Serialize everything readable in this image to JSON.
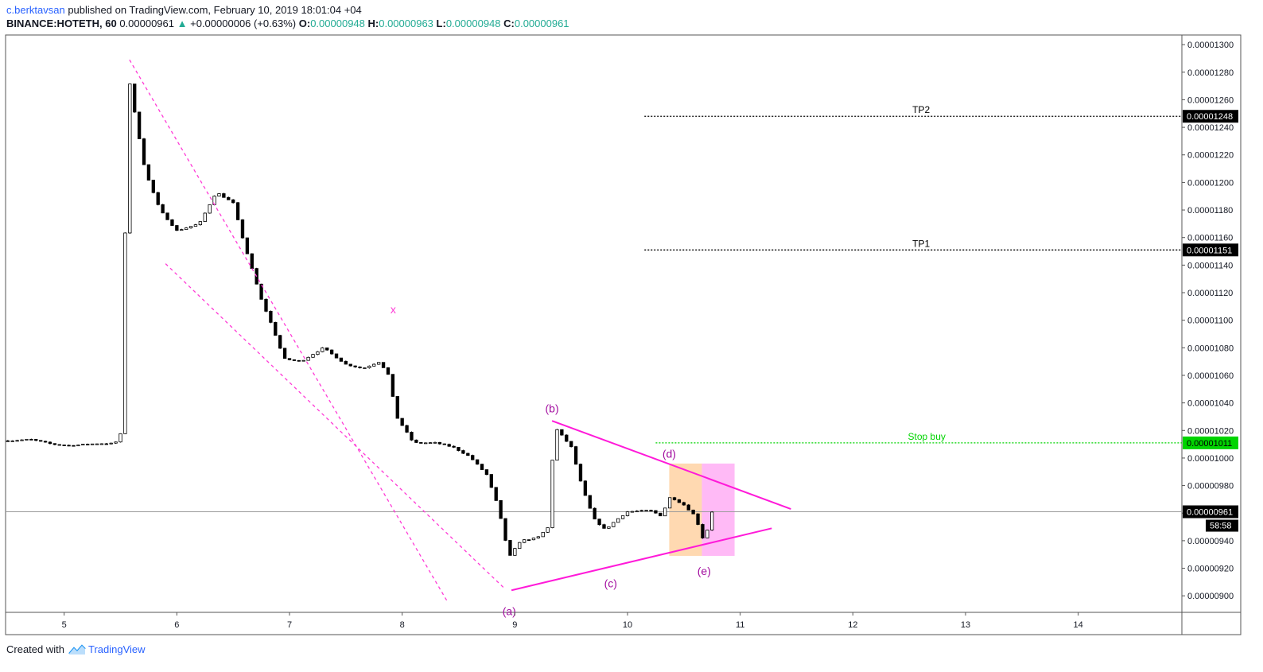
{
  "header": {
    "author": "c.berktavsan",
    "published": "published on TradingView.com, February 10, 2019 18:01:04 +04",
    "symbol": "BINANCE:HOTETH, 60",
    "last": "0.00000961",
    "change_arrow": "▲",
    "change": "+0.00000006 (+0.63%)",
    "o_label": "O:",
    "o_value": "0.00000948",
    "h_label": "H:",
    "h_value": "0.00000963",
    "l_label": "L:",
    "l_value": "0.00000948",
    "c_label": "C:",
    "c_value": "0.00000961"
  },
  "footer": {
    "created_with": "Created with",
    "brand": "TradingView"
  },
  "colors": {
    "bull": "#ffffff",
    "bear": "#000000",
    "wick": "#000000",
    "channel": "#ff3ad6",
    "triangle": "#ff1ad9",
    "wave_label": "#a30fa0",
    "stop": "#00d400",
    "target": "#000000",
    "last_price_line": "#9a9a9a",
    "risk_zone": "#ffd5a8",
    "reward_zone": "#ffb3f5"
  },
  "chart_data": {
    "type": "candlestick",
    "price_range": [
      8.88e-06,
      1.307e-05
    ],
    "y_ticks": [
      "0.00000900",
      "0.00000920",
      "0.00000940",
      "0.00000960",
      "0.00000980",
      "0.00001000",
      "0.00001020",
      "0.00001040",
      "0.00001060",
      "0.00001080",
      "0.00001100",
      "0.00001120",
      "0.00001140",
      "0.00001160",
      "0.00001180",
      "0.00001200",
      "0.00001220",
      "0.00001240",
      "0.00001260",
      "0.00001280",
      "0.00001300"
    ],
    "x_ticks": [
      "5",
      "6",
      "7",
      "8",
      "9",
      "10",
      "11",
      "12",
      "13",
      "14"
    ],
    "x_range_days": [
      4.48,
      14.92
    ],
    "price_anchors": [
      [
        4.5,
        1.0125e-05
      ],
      [
        4.7,
        1.0135e-05
      ],
      [
        4.9,
        1.01e-05
      ],
      [
        5.05,
        1.009e-05
      ],
      [
        5.3,
        1.0105e-05
      ],
      [
        5.45,
        1.0105e-05
      ],
      [
        5.52,
        1.02e-05
      ],
      [
        5.56,
        1.285e-05
      ],
      [
        5.6,
        1.262e-05
      ],
      [
        5.72,
        1.208e-05
      ],
      [
        5.85,
        1.18e-05
      ],
      [
        6.0,
        1.165e-05
      ],
      [
        6.2,
        1.17e-05
      ],
      [
        6.35,
        1.193e-05
      ],
      [
        6.5,
        1.185e-05
      ],
      [
        6.6,
        1.155e-05
      ],
      [
        6.75,
        1.115e-05
      ],
      [
        6.85,
        1.095e-05
      ],
      [
        6.95,
        1.072e-05
      ],
      [
        7.1,
        1.07e-05
      ],
      [
        7.3,
        1.08e-05
      ],
      [
        7.5,
        1.068e-05
      ],
      [
        7.65,
        1.065e-05
      ],
      [
        7.8,
        1.07e-05
      ],
      [
        7.88,
        1.06e-05
      ],
      [
        7.95,
        1.03e-05
      ],
      [
        8.1,
        1.011e-05
      ],
      [
        8.3,
        1.011e-05
      ],
      [
        8.45,
        1.008e-05
      ],
      [
        8.6,
        1.001e-05
      ],
      [
        8.75,
        9.88e-06
      ],
      [
        8.85,
        9.65e-06
      ],
      [
        8.95,
        9.28e-06
      ],
      [
        9.05,
        9.4e-06
      ],
      [
        9.2,
        9.42e-06
      ],
      [
        9.3,
        9.5e-06
      ],
      [
        9.35,
        1.023e-05
      ],
      [
        9.5,
        1.008e-05
      ],
      [
        9.6,
        9.78e-06
      ],
      [
        9.7,
        9.56e-06
      ],
      [
        9.8,
        9.48e-06
      ],
      [
        9.9,
        9.55e-06
      ],
      [
        10.0,
        9.61e-06
      ],
      [
        10.2,
        9.62e-06
      ],
      [
        10.3,
        9.58e-06
      ],
      [
        10.38,
        9.72e-06
      ],
      [
        10.5,
        9.66e-06
      ],
      [
        10.6,
        9.58e-06
      ],
      [
        10.68,
        9.39e-06
      ],
      [
        10.75,
        9.61e-06
      ]
    ],
    "last_price": 9.61e-06,
    "countdown": "58:58",
    "levels": [
      {
        "label": "TP2",
        "price": 1.248e-05,
        "price_label": "0.00001248",
        "kind": "target",
        "from_day": 10.15
      },
      {
        "label": "TP1",
        "price": 1.151e-05,
        "price_label": "0.00001151",
        "kind": "target",
        "from_day": 10.15
      },
      {
        "label": "Stop buy",
        "price": 1.011e-05,
        "price_label": "0.00001011",
        "kind": "stop",
        "from_day": 10.25
      }
    ],
    "last_price_label": "0.00000961",
    "wave_labels": [
      {
        "text": "x",
        "day": 7.92,
        "price": 1.108e-05
      },
      {
        "text": "(a)",
        "day": 8.95,
        "price": 8.89e-06
      },
      {
        "text": "(b)",
        "day": 9.33,
        "price": 1.036e-05
      },
      {
        "text": "(c)",
        "day": 9.85,
        "price": 9.09e-06
      },
      {
        "text": "(d)",
        "day": 10.37,
        "price": 1.003e-05
      },
      {
        "text": "(e)",
        "day": 10.68,
        "price": 9.18e-06
      }
    ],
    "channel_lines": [
      {
        "from": [
          5.58,
          1.289e-05
        ],
        "to": [
          8.4,
          8.96e-06
        ]
      },
      {
        "from": [
          5.9,
          1.141e-05
        ],
        "to": [
          8.9,
          9.06e-06
        ]
      }
    ],
    "triangle_lines": [
      {
        "from": [
          9.33,
          1.027e-05
        ],
        "to": [
          11.45,
          9.63e-06
        ]
      },
      {
        "from": [
          8.97,
          9.04e-06
        ],
        "to": [
          11.28,
          9.49e-06
        ]
      }
    ],
    "zones": [
      {
        "kind": "risk",
        "from_day": 10.37,
        "to_day": 10.66,
        "top": 9.96e-06,
        "bottom": 9.29e-06
      },
      {
        "kind": "reward",
        "from_day": 10.66,
        "to_day": 10.95,
        "top": 9.96e-06,
        "bottom": 9.29e-06
      }
    ]
  }
}
